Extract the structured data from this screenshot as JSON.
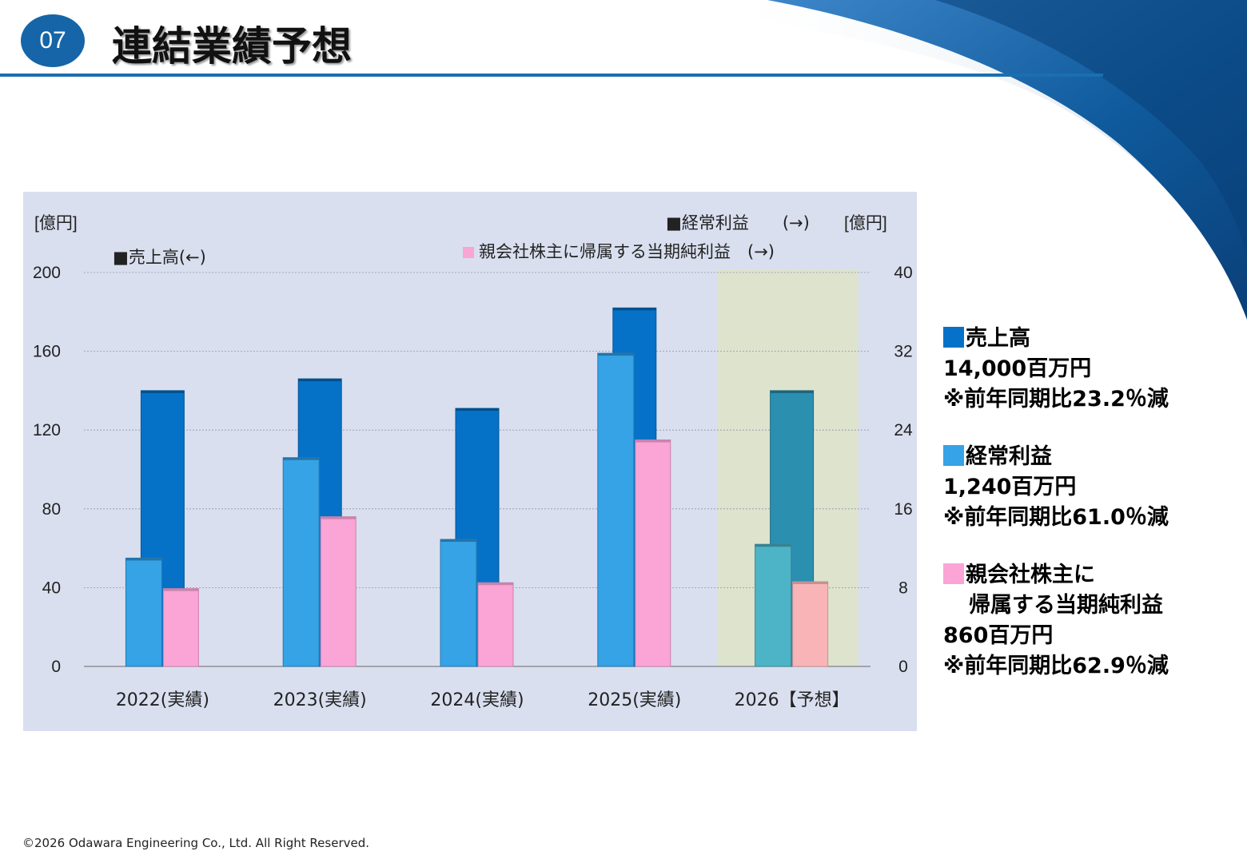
{
  "header": {
    "section_number": "07",
    "title": "連結業績予想"
  },
  "colors": {
    "sales": "#0572c8",
    "ordinary_profit": "#35a3e6",
    "net_profit": "#fba4d6",
    "forecast_sales": "#2b8fb0",
    "forecast_ordinary_profit": "#4db4c7",
    "forecast_net_profit": "#f9b4b8",
    "chart_background": "#d9dfef",
    "forecast_band": "#dde3cd"
  },
  "chart_data": {
    "type": "bar",
    "categories": [
      "2022(実績)",
      "2023(実績)",
      "2024(実績)",
      "2025(実績)",
      "2026【予想】"
    ],
    "y_left": {
      "unit_label": "[億円]",
      "range": [
        0,
        200
      ],
      "ticks": [
        "0",
        "40",
        "80",
        "120",
        "160",
        "200"
      ]
    },
    "y_right": {
      "unit_label": "[億円]",
      "range": [
        0,
        40
      ],
      "ticks": [
        "0",
        "8",
        "16",
        "24",
        "32",
        "40"
      ]
    },
    "series": [
      {
        "name": "売上高",
        "axis": "left",
        "legend_label": "■売上高(←)",
        "values": [
          140,
          146,
          131,
          182,
          140
        ]
      },
      {
        "name": "経常利益",
        "axis": "right",
        "legend_label": "■経常利益　　(→)",
        "values": [
          11,
          21.2,
          12.9,
          31.8,
          12.4
        ]
      },
      {
        "name": "親会社株主に帰属する当期純利益",
        "axis": "right",
        "legend_label": "親会社株主に帰属する当期純利益　(→)",
        "values": [
          7.9,
          15.2,
          8.5,
          23,
          8.6
        ]
      }
    ],
    "forecast_category": "2026【予想】",
    "grid": true,
    "legend_placement": "top"
  },
  "summary": [
    {
      "key": "sales",
      "title_lines": [
        "売上高"
      ],
      "amount": "14,000百万円",
      "change": "※前年同期比23.2％減"
    },
    {
      "key": "ordinary_profit",
      "title_lines": [
        "経常利益"
      ],
      "amount": "1,240百万円",
      "change": "※前年同期比61.0％減"
    },
    {
      "key": "net_profit",
      "title_lines": [
        "親会社株主に",
        "帰属する当期純利益"
      ],
      "amount": "860百万円",
      "change": "※前年同期比62.9％減"
    }
  ],
  "footer": {
    "copyright": "©2026 Odawara Engineering Co., Ltd. All Right Reserved."
  }
}
